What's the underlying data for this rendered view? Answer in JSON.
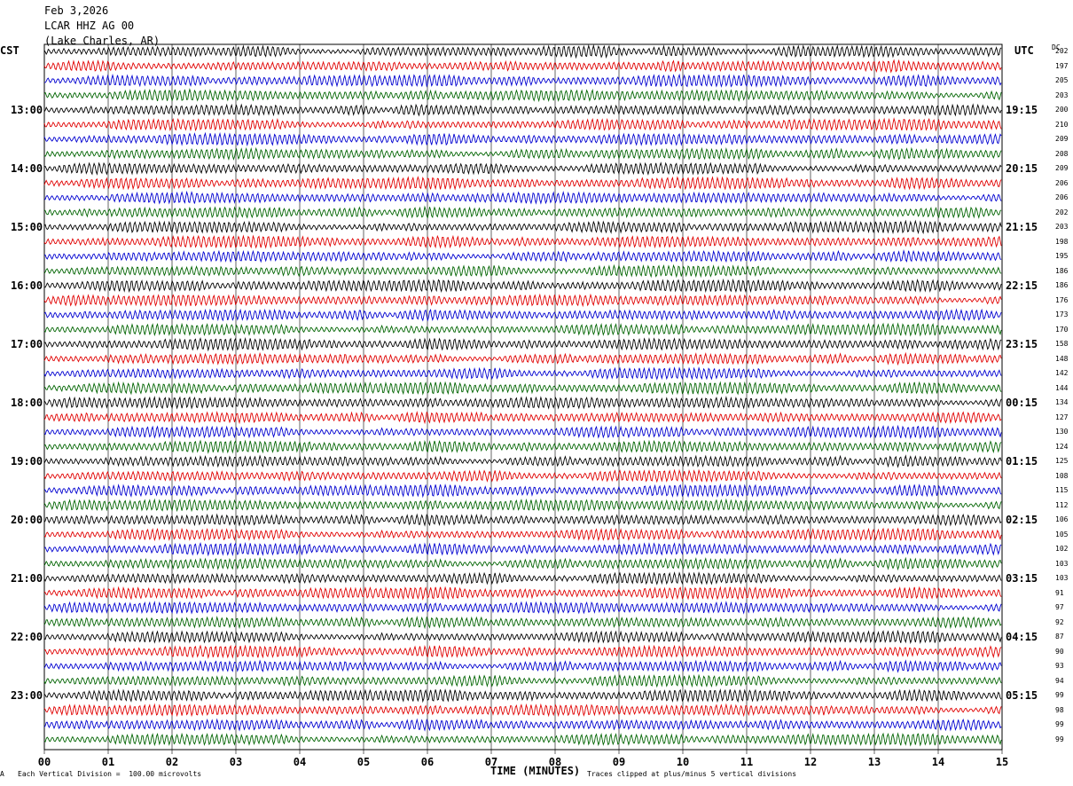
{
  "header": {
    "date": "Feb 3,2026",
    "station": "LCAR HHZ AG 00",
    "location": "(Lake Charles, AR)"
  },
  "left_axis_title": "CST",
  "right_axis_title": "UTC",
  "dc_header": "DC",
  "x_axis_label": "TIME (MINUTES)",
  "footer": {
    "scale_note": "Each Vertical Division =  100.00 microvolts",
    "clip_note": "Traces clipped at plus/minus 5 vertical divisions",
    "corner_mark": "A"
  },
  "colors": {
    "trace_cycle": [
      "#000000",
      "#e00000",
      "#0000d0",
      "#006400"
    ],
    "grid": "#000000"
  },
  "chart_data": {
    "type": "line",
    "title": "Feb 3,2026",
    "xlabel": "TIME (MINUTES)",
    "x_ticks": [
      "00",
      "01",
      "02",
      "03",
      "04",
      "05",
      "06",
      "07",
      "08",
      "09",
      "10",
      "11",
      "12",
      "13",
      "14",
      "15"
    ],
    "xlim": [
      0,
      15
    ],
    "num_traces": 48,
    "minutes_per_trace": 15,
    "left_time_labels": [
      "13:00",
      "14:00",
      "15:00",
      "16:00",
      "17:00",
      "18:00",
      "19:00",
      "20:00",
      "21:00",
      "22:00",
      "23:00"
    ],
    "right_time_labels": [
      "19:15",
      "20:15",
      "21:15",
      "22:15",
      "23:15",
      "00:15",
      "01:15",
      "02:15",
      "03:15",
      "04:15",
      "05:15"
    ],
    "time_label_trace_index": [
      4,
      8,
      12,
      16,
      20,
      24,
      28,
      32,
      36,
      40,
      44
    ],
    "dc_offsets": [
      202,
      197,
      205,
      203,
      200,
      210,
      209,
      208,
      209,
      206,
      206,
      202,
      203,
      198,
      195,
      186,
      186,
      176,
      173,
      170,
      158,
      148,
      142,
      144,
      134,
      127,
      130,
      124,
      125,
      108,
      115,
      112,
      106,
      105,
      102,
      103,
      103,
      91,
      97,
      92,
      87,
      90,
      93,
      94,
      99,
      98,
      99,
      99
    ],
    "trace_color_cycle": [
      "black",
      "red",
      "blue",
      "green"
    ]
  }
}
